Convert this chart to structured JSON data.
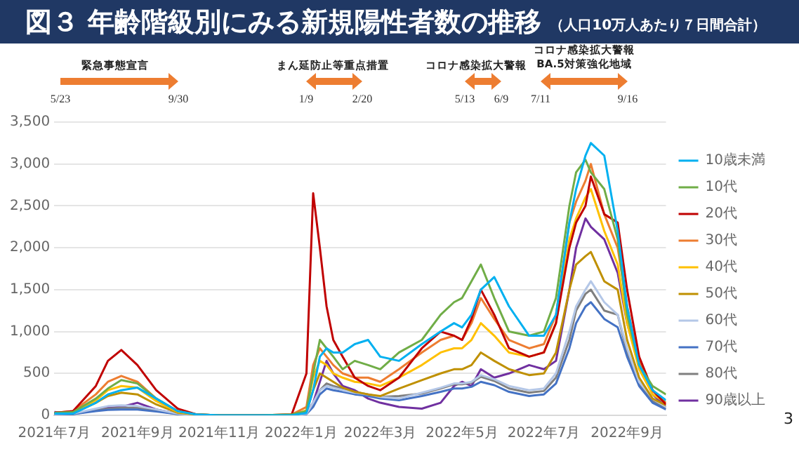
{
  "chart_data": {
    "type": "line",
    "title": "図３ 年齢階級別にみる新規陽性者数の推移",
    "subtitle": "（人口10万人あたり７日間合計）",
    "annotations": [
      "緊急事態宣言",
      "5/23",
      "9/30",
      "まん延防止等重点措置",
      "1/9",
      "2/20",
      "コロナ感染拡大警報",
      "5/13",
      "6/9",
      "コロナ感染拡大警報\nBA.5対策強化地域",
      "7/11",
      "9/16",
      "3"
    ],
    "x": [
      "2021-07-01",
      "2021-07-15",
      "2021-08-01",
      "2021-08-10",
      "2021-08-20",
      "2021-09-01",
      "2021-09-15",
      "2021-10-01",
      "2021-10-15",
      "2021-11-01",
      "2021-12-01",
      "2021-12-25",
      "2022-01-05",
      "2022-01-10",
      "2022-01-15",
      "2022-01-20",
      "2022-01-25",
      "2022-02-01",
      "2022-02-10",
      "2022-02-20",
      "2022-03-01",
      "2022-03-15",
      "2022-04-01",
      "2022-04-15",
      "2022-04-25",
      "2022-05-01",
      "2022-05-08",
      "2022-05-15",
      "2022-05-25",
      "2022-06-05",
      "2022-06-20",
      "2022-07-01",
      "2022-07-10",
      "2022-07-20",
      "2022-07-25",
      "2022-08-01",
      "2022-08-05",
      "2022-08-15",
      "2022-08-25",
      "2022-09-01",
      "2022-09-10",
      "2022-09-20",
      "2022-09-30"
    ],
    "series": [
      {
        "name": "10歳未満",
        "color": "#00b0f0",
        "values": [
          20,
          20,
          150,
          250,
          300,
          330,
          200,
          50,
          10,
          0,
          0,
          0,
          30,
          300,
          700,
          800,
          750,
          750,
          850,
          900,
          700,
          650,
          850,
          1000,
          1100,
          1050,
          1200,
          1500,
          1650,
          1300,
          950,
          950,
          1200,
          2300,
          2700,
          3100,
          3250,
          3100,
          2200,
          1300,
          600,
          300,
          180
        ]
      },
      {
        "name": "10代",
        "color": "#70ad47",
        "values": [
          30,
          40,
          200,
          320,
          420,
          380,
          200,
          50,
          10,
          0,
          0,
          10,
          50,
          500,
          900,
          800,
          700,
          550,
          650,
          600,
          550,
          750,
          900,
          1200,
          1350,
          1400,
          1600,
          1800,
          1400,
          1000,
          950,
          1000,
          1400,
          2500,
          2900,
          3050,
          2900,
          2700,
          2100,
          1200,
          600,
          350,
          250
        ]
      },
      {
        "name": "20代",
        "color": "#c00000",
        "values": [
          30,
          50,
          350,
          650,
          780,
          600,
          300,
          80,
          10,
          0,
          0,
          10,
          500,
          2650,
          2000,
          1300,
          900,
          700,
          450,
          350,
          300,
          450,
          800,
          1000,
          950,
          900,
          1150,
          1500,
          1200,
          800,
          700,
          750,
          1100,
          2000,
          2300,
          2500,
          2850,
          2400,
          2300,
          1500,
          700,
          300,
          130
        ]
      },
      {
        "name": "30代",
        "color": "#ed7d31",
        "values": [
          30,
          50,
          250,
          400,
          470,
          400,
          200,
          50,
          10,
          0,
          0,
          10,
          100,
          600,
          800,
          700,
          600,
          500,
          450,
          450,
          400,
          550,
          750,
          900,
          950,
          900,
          1100,
          1400,
          1150,
          900,
          800,
          850,
          1200,
          2300,
          2550,
          2800,
          3000,
          2400,
          2000,
          1300,
          650,
          300,
          150
        ]
      },
      {
        "name": "40代",
        "color": "#ffc000",
        "values": [
          20,
          30,
          180,
          300,
          350,
          330,
          170,
          40,
          10,
          0,
          0,
          0,
          60,
          450,
          650,
          600,
          500,
          450,
          400,
          380,
          350,
          450,
          600,
          750,
          800,
          800,
          900,
          1100,
          950,
          750,
          700,
          750,
          1100,
          2100,
          2350,
          2600,
          2700,
          2200,
          1800,
          1100,
          550,
          250,
          150
        ]
      },
      {
        "name": "50代",
        "color": "#bf9000",
        "values": [
          20,
          25,
          150,
          230,
          270,
          250,
          130,
          30,
          10,
          0,
          0,
          0,
          40,
          300,
          500,
          450,
          400,
          330,
          280,
          250,
          230,
          320,
          420,
          500,
          550,
          550,
          600,
          750,
          650,
          550,
          480,
          500,
          750,
          1500,
          1800,
          1900,
          1950,
          1600,
          1500,
          900,
          450,
          200,
          120
        ]
      },
      {
        "name": "60代",
        "color": "#b4c7e7",
        "values": [
          15,
          20,
          80,
          110,
          120,
          110,
          70,
          20,
          0,
          0,
          0,
          0,
          20,
          150,
          300,
          350,
          330,
          300,
          270,
          250,
          220,
          200,
          270,
          330,
          380,
          380,
          400,
          480,
          430,
          350,
          300,
          320,
          500,
          1000,
          1300,
          1500,
          1600,
          1350,
          1200,
          800,
          400,
          200,
          100
        ]
      },
      {
        "name": "70代",
        "color": "#4472c4",
        "values": [
          10,
          15,
          50,
          65,
          70,
          70,
          45,
          15,
          0,
          0,
          0,
          0,
          15,
          100,
          250,
          320,
          300,
          280,
          250,
          230,
          200,
          180,
          230,
          280,
          320,
          320,
          340,
          400,
          360,
          280,
          230,
          250,
          380,
          800,
          1100,
          1300,
          1350,
          1150,
          1050,
          700,
          350,
          150,
          70
        ]
      },
      {
        "name": "80代",
        "color": "#7f7f7f",
        "values": [
          10,
          15,
          60,
          80,
          90,
          90,
          55,
          15,
          0,
          0,
          0,
          0,
          15,
          120,
          300,
          380,
          350,
          320,
          280,
          250,
          220,
          230,
          260,
          320,
          370,
          370,
          390,
          460,
          410,
          320,
          270,
          290,
          450,
          900,
          1250,
          1450,
          1500,
          1250,
          1200,
          750,
          380,
          170,
          80
        ]
      },
      {
        "name": "90歳以上",
        "color": "#7030a0",
        "values": [
          40,
          20,
          60,
          90,
          100,
          150,
          70,
          20,
          0,
          0,
          0,
          0,
          30,
          150,
          400,
          650,
          500,
          350,
          300,
          200,
          150,
          100,
          80,
          150,
          350,
          400,
          350,
          550,
          450,
          500,
          600,
          550,
          650,
          1500,
          2000,
          2350,
          2250,
          2100,
          1700,
          1100,
          600,
          250,
          100
        ]
      }
    ],
    "xlim": [
      "2021-07-01",
      "2022-09-30"
    ],
    "xticks": [
      {
        "value": "2021-07-01",
        "label": "2021年7月"
      },
      {
        "value": "2021-09-01",
        "label": "2021年9月"
      },
      {
        "value": "2021-11-01",
        "label": "2021年11月"
      },
      {
        "value": "2022-01-01",
        "label": "2022年1月"
      },
      {
        "value": "2022-03-01",
        "label": "2022年3月"
      },
      {
        "value": "2022-05-01",
        "label": "2022年5月"
      },
      {
        "value": "2022-07-01",
        "label": "2022年7月"
      },
      {
        "value": "2022-09-01",
        "label": "2022年9月"
      }
    ],
    "ylim": [
      0,
      3500
    ],
    "yticks": [
      0,
      500,
      {
        "value": 1000,
        "label": "1,000"
      },
      {
        "value": 1500,
        "label": "1,500"
      },
      {
        "value": 2000,
        "label": "2,000"
      },
      {
        "value": 2500,
        "label": "2,500"
      },
      {
        "value": 3000,
        "label": "3,000"
      },
      {
        "value": 3500,
        "label": "3,500"
      }
    ],
    "grid": "y",
    "legend": "right",
    "marker": "none",
    "line_style": "solid"
  }
}
